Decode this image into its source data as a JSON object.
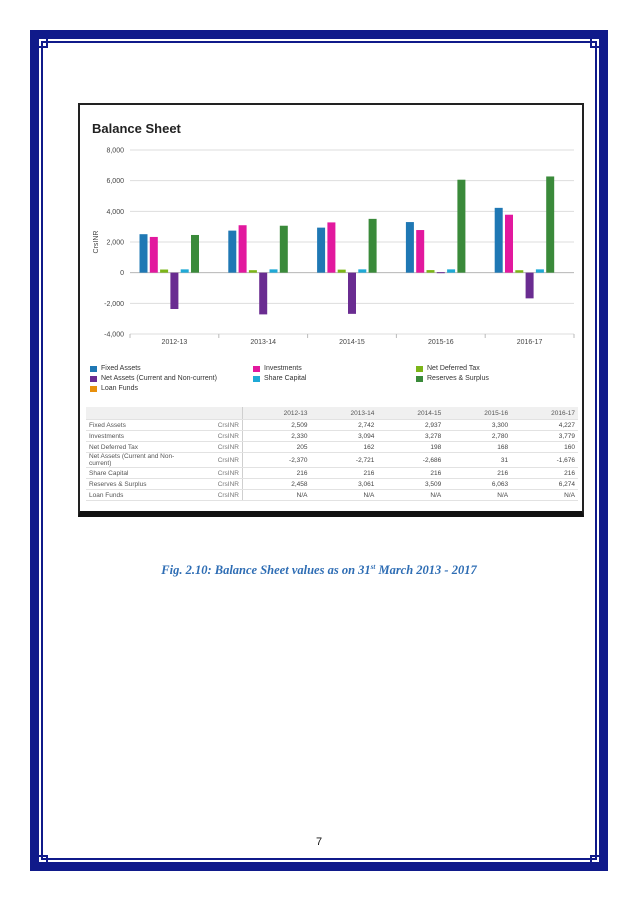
{
  "page": {
    "caption_text": "Fig. 2.10: Balance Sheet values as on 31",
    "caption_sup": "st",
    "caption_tail": " March 2013 - 2017",
    "page_number": "7",
    "frame_color": "#101a8a"
  },
  "chart_data": {
    "type": "bar",
    "title": "Balance Sheet",
    "ylabel": "CrsINR",
    "xlabel": "",
    "ylim": [
      -4000,
      8000
    ],
    "yticks": [
      -4000,
      -2000,
      0,
      2000,
      4000,
      6000,
      8000
    ],
    "ytick_labels": [
      "-4,000",
      "-2,000",
      "0",
      "2,000",
      "4,000",
      "6,000",
      "8,000"
    ],
    "grid": true,
    "legend_position": "bottom",
    "categories": [
      "2012-13",
      "2013-14",
      "2014-15",
      "2015-16",
      "2016-17"
    ],
    "series": [
      {
        "name": "Fixed Assets",
        "color": "#1f78b4",
        "values": [
          2509,
          2742,
          2937,
          3300,
          4227
        ]
      },
      {
        "name": "Investments",
        "color": "#e2189e",
        "values": [
          2330,
          3094,
          3278,
          2780,
          3779
        ]
      },
      {
        "name": "Net Deferred Tax",
        "color": "#7cb518",
        "values": [
          205,
          162,
          198,
          168,
          160
        ]
      },
      {
        "name": "Net Assets (Current and Non-current)",
        "color": "#6a2c91",
        "values": [
          -2370,
          -2721,
          -2686,
          31,
          -1676
        ]
      },
      {
        "name": "Share Capital",
        "color": "#1fa9d6",
        "values": [
          216,
          216,
          216,
          216,
          216
        ]
      },
      {
        "name": "Reserves & Surplus",
        "color": "#3a8a3a",
        "values": [
          2458,
          3061,
          3509,
          6063,
          6274
        ]
      },
      {
        "name": "Loan Funds",
        "color": "#e8900c",
        "values": [
          null,
          null,
          null,
          null,
          null
        ]
      }
    ]
  },
  "table": {
    "headers": [
      "2012-13",
      "2013-14",
      "2014-15",
      "2015-16",
      "2016-17"
    ],
    "rows": [
      {
        "label": "Fixed Assets",
        "unit": "CrsINR",
        "values": [
          "2,509",
          "2,742",
          "2,937",
          "3,300",
          "4,227"
        ]
      },
      {
        "label": "Investments",
        "unit": "CrsINR",
        "values": [
          "2,330",
          "3,094",
          "3,278",
          "2,780",
          "3,779"
        ]
      },
      {
        "label": "Net Deferred Tax",
        "unit": "CrsINR",
        "values": [
          "205",
          "162",
          "198",
          "168",
          "160"
        ]
      },
      {
        "label": "Net Assets (Current and Non-current)",
        "unit": "CrsINR",
        "values": [
          "-2,370",
          "-2,721",
          "-2,686",
          "31",
          "-1,676"
        ]
      },
      {
        "label": "Share Capital",
        "unit": "CrsINR",
        "values": [
          "216",
          "216",
          "216",
          "216",
          "216"
        ]
      },
      {
        "label": "Reserves & Surplus",
        "unit": "CrsINR",
        "values": [
          "2,458",
          "3,061",
          "3,509",
          "6,063",
          "6,274"
        ]
      },
      {
        "label": "Loan Funds",
        "unit": "CrsINR",
        "values": [
          "N/A",
          "N/A",
          "N/A",
          "N/A",
          "N/A"
        ]
      }
    ]
  }
}
